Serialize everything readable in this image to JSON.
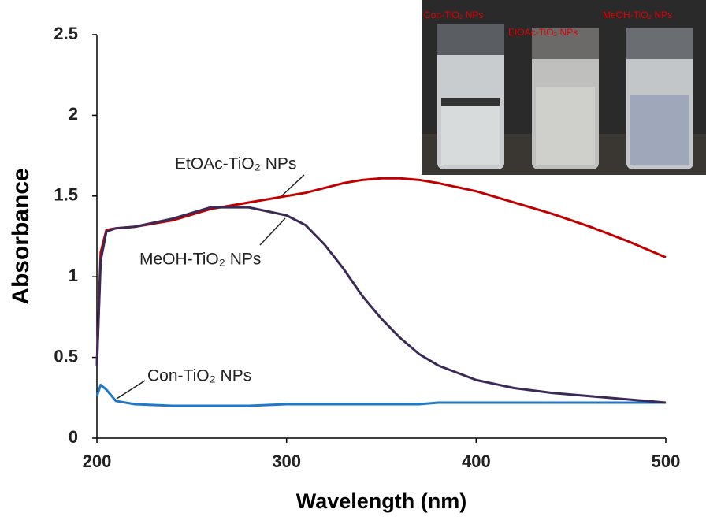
{
  "chart_data": {
    "type": "line",
    "xlabel": "Wavelength (nm)",
    "ylabel": "Absorbance",
    "x": [
      200,
      202,
      205,
      210,
      220,
      240,
      260,
      280,
      300,
      310,
      320,
      330,
      340,
      350,
      360,
      370,
      380,
      400,
      420,
      440,
      460,
      480,
      500
    ],
    "series": [
      {
        "name": "Con-TiO₂ NPs",
        "color": "#1f78c8",
        "values": [
          0.26,
          0.33,
          0.3,
          0.23,
          0.21,
          0.2,
          0.2,
          0.2,
          0.21,
          0.21,
          0.21,
          0.21,
          0.21,
          0.21,
          0.21,
          0.21,
          0.22,
          0.22,
          0.22,
          0.22,
          0.22,
          0.22,
          0.22
        ]
      },
      {
        "name": "EtOAc-TiO₂ NPs",
        "color": "#c00000",
        "values": [
          0.45,
          1.15,
          1.29,
          1.3,
          1.31,
          1.35,
          1.42,
          1.46,
          1.5,
          1.52,
          1.55,
          1.58,
          1.6,
          1.61,
          1.61,
          1.6,
          1.58,
          1.53,
          1.46,
          1.39,
          1.31,
          1.22,
          1.12
        ]
      },
      {
        "name": "MeOH-TiO₂ NPs",
        "color": "#3b2a55",
        "values": [
          0.45,
          1.1,
          1.28,
          1.3,
          1.31,
          1.36,
          1.43,
          1.43,
          1.38,
          1.32,
          1.2,
          1.05,
          0.88,
          0.74,
          0.62,
          0.52,
          0.45,
          0.36,
          0.31,
          0.28,
          0.26,
          0.24,
          0.22
        ]
      }
    ],
    "xlim": [
      200,
      500
    ],
    "xticks": [
      200,
      300,
      400,
      500
    ],
    "ylim": [
      0,
      2.5
    ],
    "yticks": [
      0,
      0.5,
      1,
      1.5,
      2,
      2.5
    ]
  }
}
